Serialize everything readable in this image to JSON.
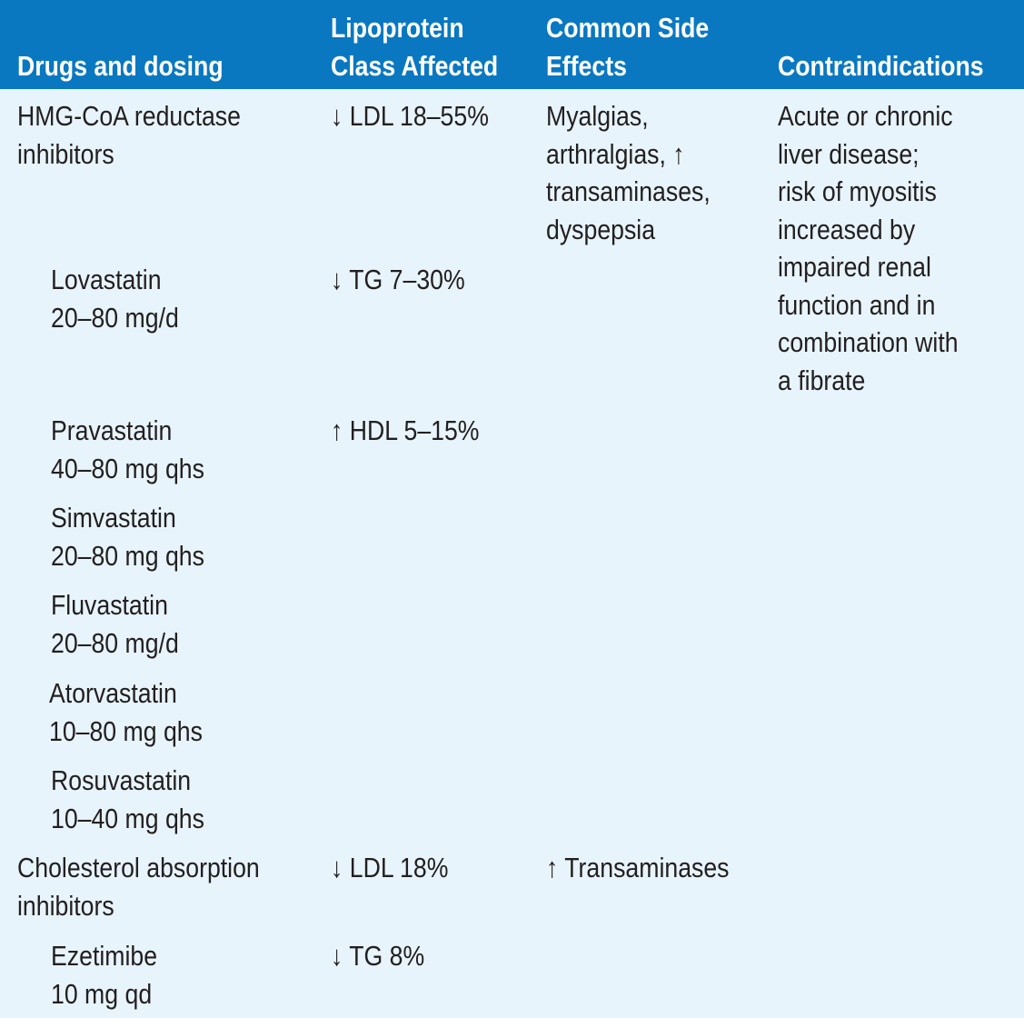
{
  "table": {
    "header": {
      "drugs": "Drugs and dosing",
      "lipo_line1": "Lipoprotein",
      "lipo_line2": "Class Affected",
      "side_line1": "Common Side",
      "side_line2": "Effects",
      "contra": "Contraindications"
    },
    "rows": {
      "hmg": {
        "drug": "HMG-CoA reductase\ninhibitors",
        "effect": "↓ LDL 18–55%",
        "side": "Myalgias,\narthralgias, ↑\ntransaminases,\ndyspepsia",
        "contra": "Acute or chronic\nliver disease;\nrisk of myositis\nincreased by\nimpaired renal\nfunction and in\ncombination with\na fibrate"
      },
      "lovastatin": {
        "drug": "Lovastatin\n20–80 mg/d",
        "effect": "↓ TG 7–30%"
      },
      "pravastatin": {
        "drug": "Pravastatin\n40–80 mg qhs",
        "effect": "↑ HDL 5–15%"
      },
      "simvastatin": {
        "drug": "Simvastatin\n20–80 mg qhs"
      },
      "fluvastatin": {
        "drug": "Fluvastatin\n20–80 mg/d"
      },
      "atorvastatin": {
        "drug": "Atorvastatin\n10–80 mg qhs"
      },
      "rosuvastatin": {
        "drug": "Rosuvastatin\n10–40 mg qhs"
      },
      "cholesterol": {
        "drug": "Cholesterol absorption\ninhibitors",
        "effect": "↓ LDL 18%",
        "side": "↑ Transaminases"
      },
      "ezetimibe": {
        "drug": "Ezetimibe\n10 mg qd",
        "effect": "↓ TG 8%"
      }
    },
    "colors": {
      "header_bg": "#0a78c1",
      "body_bg": "#e7f4fb",
      "header_text": "#ffffff",
      "body_text": "#231f20"
    }
  }
}
